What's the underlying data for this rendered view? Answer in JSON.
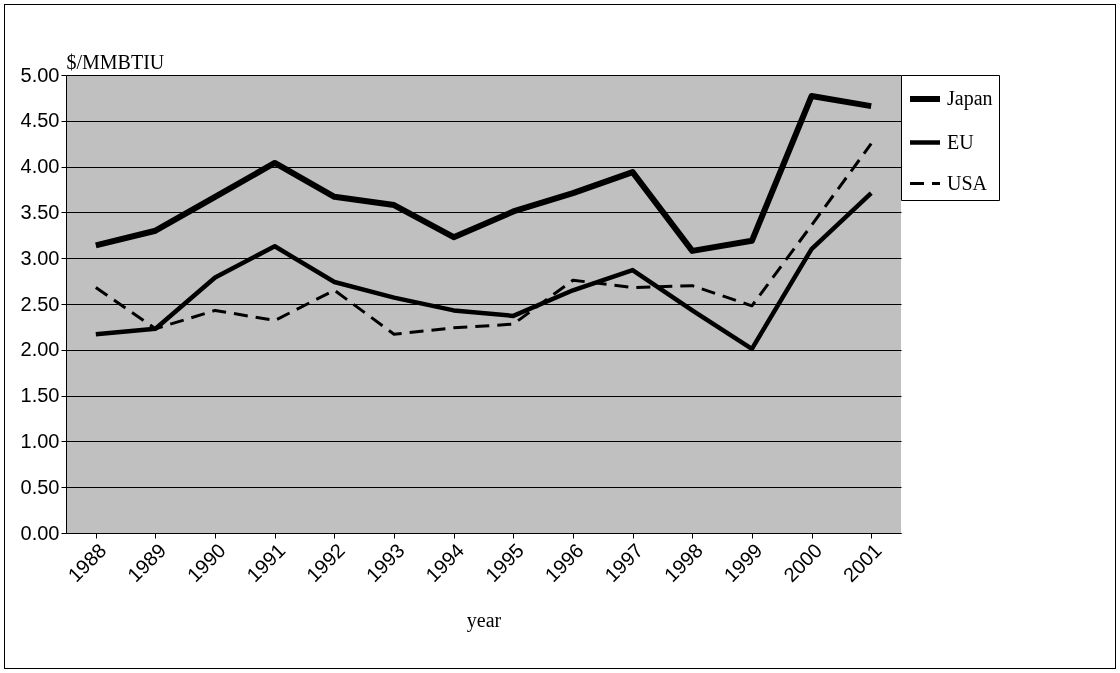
{
  "chart_data": {
    "type": "line",
    "xlabel": "year",
    "ylabel": "$/MMBTIU",
    "categories": [
      "1988",
      "1989",
      "1990",
      "1991",
      "1992",
      "1993",
      "1994",
      "1995",
      "1996",
      "1997",
      "1998",
      "1999",
      "2000",
      "2001"
    ],
    "series": [
      {
        "name": "Japan",
        "color": "#000000",
        "line_style": "solid",
        "values": [
          3.14,
          3.3,
          3.67,
          4.04,
          3.67,
          3.58,
          3.23,
          3.51,
          3.71,
          3.94,
          3.08,
          3.19,
          4.77,
          4.66
        ]
      },
      {
        "name": "EU",
        "color": "#000000",
        "line_style": "solid",
        "values": [
          2.17,
          2.23,
          2.79,
          3.13,
          2.74,
          2.57,
          2.43,
          2.37,
          2.65,
          2.87,
          2.43,
          2.01,
          3.1,
          3.71
        ]
      },
      {
        "name": "USA",
        "color": "#000000",
        "line_style": "dashed",
        "values": [
          2.68,
          2.23,
          2.43,
          2.32,
          2.65,
          2.17,
          2.24,
          2.28,
          2.76,
          2.68,
          2.7,
          2.48,
          3.36,
          4.25
        ]
      }
    ],
    "ylim": [
      0,
      5
    ],
    "yticks": [
      {
        "value": 0,
        "label": "0.00"
      },
      {
        "value": 0.5,
        "label": "0.50"
      },
      {
        "value": 1,
        "label": "1.00"
      },
      {
        "value": 1.5,
        "label": "1.50"
      },
      {
        "value": 2,
        "label": "2.00"
      },
      {
        "value": 2.5,
        "label": "2.50"
      },
      {
        "value": 3,
        "label": "3.00"
      },
      {
        "value": 3.5,
        "label": "3.50"
      },
      {
        "value": 4,
        "label": "4.00"
      },
      {
        "value": 4.5,
        "label": "4.50"
      },
      {
        "value": 5,
        "label": "5.00"
      }
    ],
    "grid": "y",
    "legend": "right",
    "marker": "none"
  }
}
